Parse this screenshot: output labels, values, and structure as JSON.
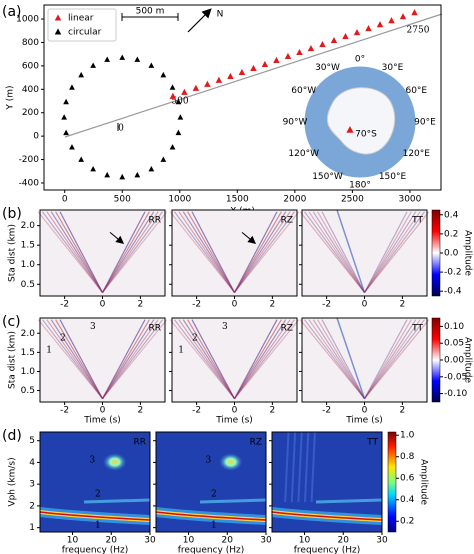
{
  "chart_data": [
    {
      "type": "scatter",
      "panel_label": "(a)",
      "xlabel": "X (m)",
      "ylabel": "Y (m)",
      "xlim": [
        -180,
        3270
      ],
      "ylim": [
        -460,
        1120
      ],
      "xticks": [
        0,
        500,
        1000,
        1500,
        2000,
        2500,
        3000
      ],
      "yticks": [
        -400,
        -200,
        0,
        200,
        400,
        600,
        800,
        1000
      ],
      "legend": "upper left",
      "series": [
        {
          "name": "linear",
          "color": "#e31a1c",
          "x": [
            940,
            1040,
            1140,
            1240,
            1340,
            1440,
            1540,
            1640,
            1740,
            1840,
            1940,
            2040,
            2140,
            2240,
            2340,
            2440,
            2540,
            2640,
            2740,
            2840,
            2940,
            3040
          ],
          "y": [
            340,
            374,
            408,
            442,
            476,
            510,
            544,
            578,
            612,
            646,
            680,
            714,
            748,
            782,
            816,
            850,
            884,
            918,
            952,
            986,
            1020,
            1054
          ]
        },
        {
          "name": "circular",
          "color": "#000000",
          "x": [
            1005,
            988,
            937,
            857,
            753,
            631,
            500,
            369,
            247,
            143,
            63,
            12,
            -5,
            12,
            63,
            143,
            247,
            369,
            500,
            631,
            753,
            857,
            937,
            988
          ],
          "y": [
            160,
            292,
            415,
            521,
            602,
            653,
            670,
            653,
            602,
            521,
            415,
            292,
            160,
            28,
            -95,
            -201,
            -282,
            -333,
            -350,
            -333,
            -282,
            -201,
            -95,
            28
          ]
        }
      ],
      "annotations": [
        "500 m",
        "N",
        "0",
        "500",
        "2750"
      ],
      "inset_labels": [
        "0°",
        "30°E",
        "60°E",
        "90°E",
        "120°E",
        "150°E",
        "180°",
        "150°W",
        "120°W",
        "90°W",
        "60°W",
        "30°W",
        "70°S"
      ]
    },
    {
      "type": "heatmap",
      "panel_label": "(b)",
      "subplots": [
        "RR",
        "RZ",
        "TT"
      ],
      "ylabel": "Sta dist (km)",
      "xlim": [
        -3.3,
        3.3
      ],
      "xticks": [
        -2,
        0,
        2
      ],
      "ylim": [
        0.2,
        2.4
      ],
      "yticks": [
        0.5,
        {
          "value": 1,
          "label": "1.0"
        },
        1.5,
        {
          "value": 2,
          "label": "2.0"
        }
      ],
      "colorbar": {
        "label": "Amplitude",
        "colormap": "seismic",
        "lim": [
          -0.45,
          0.45
        ],
        "ticks": [
          -0.4,
          -0.2,
          {
            "value": 0,
            "label": "0.0"
          },
          0.2,
          0.4
        ]
      }
    },
    {
      "type": "heatmap",
      "panel_label": "(c)",
      "subplots": [
        "RR",
        "RZ",
        "TT"
      ],
      "xlabel": "Time (s)",
      "ylabel": "Sta dist (km)",
      "xlim": [
        -3.3,
        3.3
      ],
      "xticks": [
        -2,
        0,
        2
      ],
      "ylim": [
        0.2,
        2.4
      ],
      "yticks": [
        0.5,
        {
          "value": 1,
          "label": "1.0"
        },
        1.5,
        {
          "value": 2,
          "label": "2.0"
        }
      ],
      "annotations": [
        "1",
        "2",
        "3"
      ],
      "colorbar": {
        "label": "Amplitude",
        "colormap": "seismic",
        "lim": [
          -0.125,
          0.125
        ],
        "ticks": [
          {
            "value": -0.1,
            "label": "-0.10"
          },
          -0.05,
          {
            "value": 0,
            "label": "0.00"
          },
          0.05,
          {
            "value": 0.1,
            "label": "0.10"
          }
        ]
      }
    },
    {
      "type": "dispersion",
      "panel_label": "(d)",
      "subplots": [
        "RR",
        "RZ",
        "TT"
      ],
      "xlabel": "frequency (Hz)",
      "ylabel": "Vph (km/s)",
      "xlim": [
        1.6,
        30
      ],
      "xticks": [
        10,
        20,
        30
      ],
      "ylim": [
        0.8,
        5.4
      ],
      "yticks": [
        1,
        2,
        3,
        4,
        5
      ],
      "annotations": [
        "1",
        "2",
        "3"
      ],
      "colorbar": {
        "label": "Amplitude",
        "colormap": "jet",
        "lim": [
          0.1,
          1.03
        ],
        "ticks": [
          0.2,
          0.4,
          0.6,
          0.8,
          {
            "value": 1,
            "label": "1.0"
          }
        ]
      }
    }
  ]
}
